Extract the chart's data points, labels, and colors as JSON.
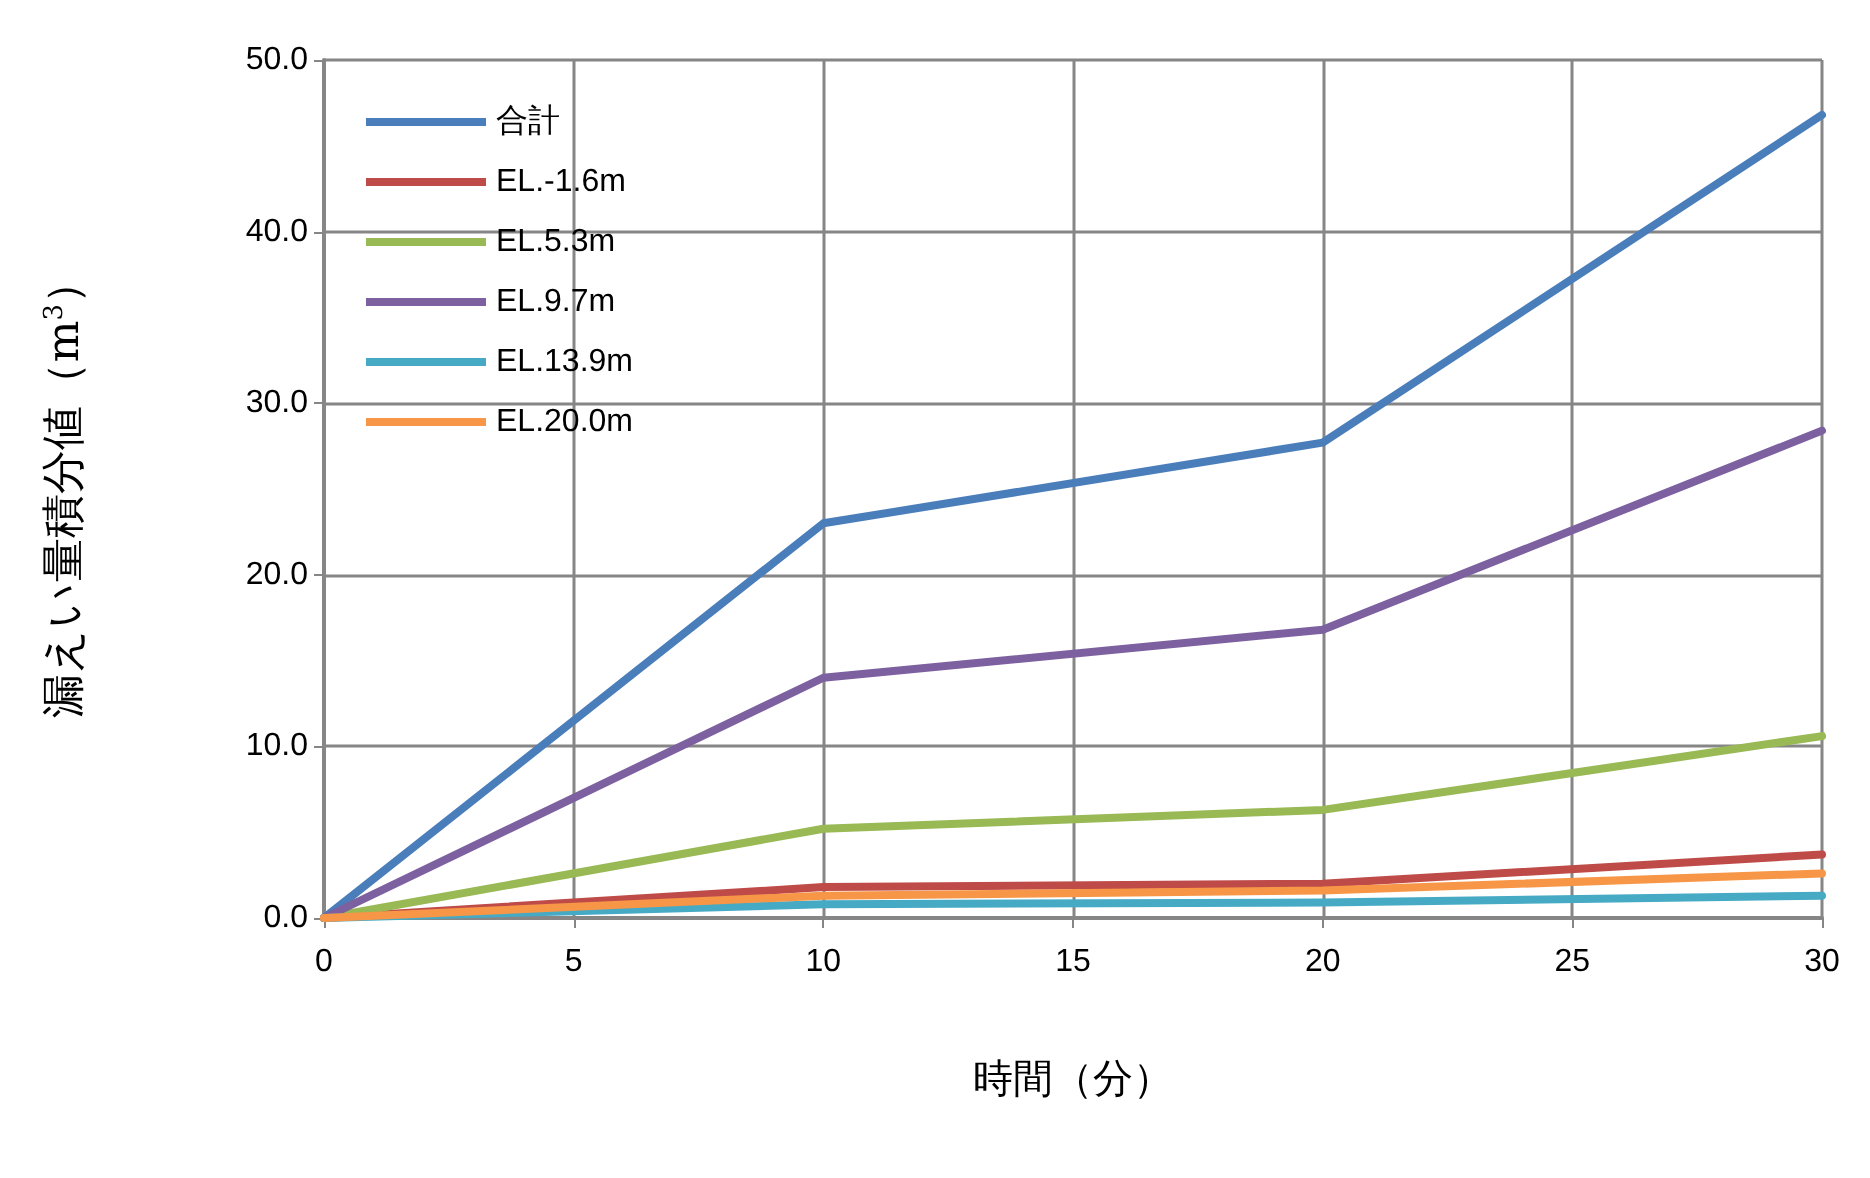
{
  "chart_data": {
    "type": "line",
    "xlabel": "時間（分）",
    "ylabel": "漏えい量積分値（m$^{3}$）",
    "x": [
      0,
      10,
      20,
      30
    ],
    "series": [
      {
        "name": "合計",
        "color": "#4a7ebb",
        "values": [
          0,
          23.0,
          27.7,
          46.8
        ]
      },
      {
        "name": "EL.-1.6m",
        "color": "#be4b48",
        "values": [
          0,
          1.8,
          2.0,
          3.7
        ]
      },
      {
        "name": "EL.5.3m",
        "color": "#98b954",
        "values": [
          0,
          5.2,
          6.3,
          10.6
        ]
      },
      {
        "name": "EL.9.7m",
        "color": "#7d60a0",
        "values": [
          0,
          14.0,
          16.8,
          28.4
        ]
      },
      {
        "name": "EL.13.9m",
        "color": "#46aac5",
        "values": [
          0,
          0.8,
          0.9,
          1.3
        ]
      },
      {
        "name": "EL.20.0m",
        "color": "#f79646",
        "values": [
          0,
          1.3,
          1.6,
          2.6
        ]
      }
    ],
    "xlim": [
      0,
      30
    ],
    "xticks": [
      0,
      5,
      10,
      15,
      20,
      25,
      30
    ],
    "ylim": [
      0,
      50
    ],
    "yticks": [
      {
        "value": 0,
        "label": "0.0"
      },
      {
        "value": 10,
        "label": "10.0"
      },
      {
        "value": 20,
        "label": "20.0"
      },
      {
        "value": 30,
        "label": "30.0"
      },
      {
        "value": 40,
        "label": "40.0"
      },
      {
        "value": 50,
        "label": "50.0"
      }
    ],
    "grid": true,
    "legend": "top left",
    "marker": "none",
    "line_style": "solid"
  }
}
